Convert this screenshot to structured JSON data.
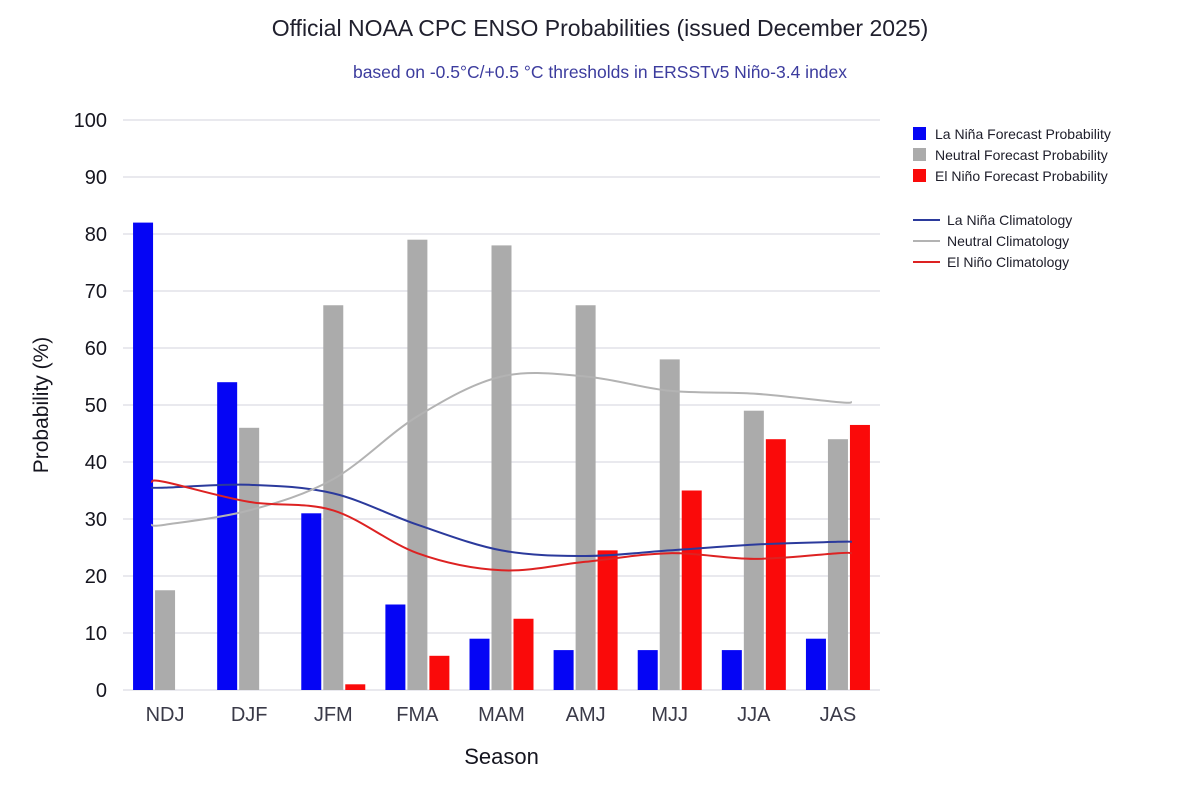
{
  "title": "Official NOAA CPC ENSO Probabilities (issued December 2025)",
  "subtitle": "based on -0.5°C/+0.5 °C thresholds in ERSSTv5 Niño-3.4 index",
  "chart_data": {
    "type": "bar",
    "categories": [
      "NDJ",
      "DJF",
      "JFM",
      "FMA",
      "MAM",
      "AMJ",
      "MJJ",
      "JJA",
      "JAS"
    ],
    "xlabel": "Season",
    "ylabel": "Probability (%)",
    "ylim": [
      0,
      100
    ],
    "ytick_step": 10,
    "grid": true,
    "legend_position": "right",
    "bar_series": [
      {
        "key": "la-nina",
        "name": "La Niña Forecast Probability",
        "color": "#0505f5",
        "values": [
          82,
          54,
          31,
          15,
          9,
          7,
          7,
          7,
          9
        ]
      },
      {
        "key": "neutral",
        "name": "Neutral Forecast Probability",
        "color": "#ababab",
        "values": [
          17.5,
          46,
          67.5,
          79,
          78,
          67.5,
          58,
          49,
          44
        ]
      },
      {
        "key": "el-nino",
        "name": "El Niño Forecast Probability",
        "color": "#fa0a0a",
        "values": [
          0,
          0,
          1,
          6,
          12.5,
          24.5,
          35,
          44,
          46.5
        ]
      }
    ],
    "line_series": [
      {
        "key": "la-nina-climo",
        "name": "La Niña Climatology",
        "color": "#2b3a9c",
        "values": [
          35.5,
          36,
          34.5,
          29,
          24.5,
          23.5,
          24.5,
          25.5,
          26
        ]
      },
      {
        "key": "neutral-climo",
        "name": "Neutral Climatology",
        "color": "#b3b3b3",
        "values": [
          29,
          31.5,
          37,
          48,
          55,
          55,
          52.5,
          52,
          50.5
        ]
      },
      {
        "key": "el-nino-climo",
        "name": "El Niño Climatology",
        "color": "#dd2222",
        "values": [
          36.5,
          33,
          31.5,
          24,
          21,
          22.5,
          24,
          23,
          24
        ]
      }
    ]
  }
}
